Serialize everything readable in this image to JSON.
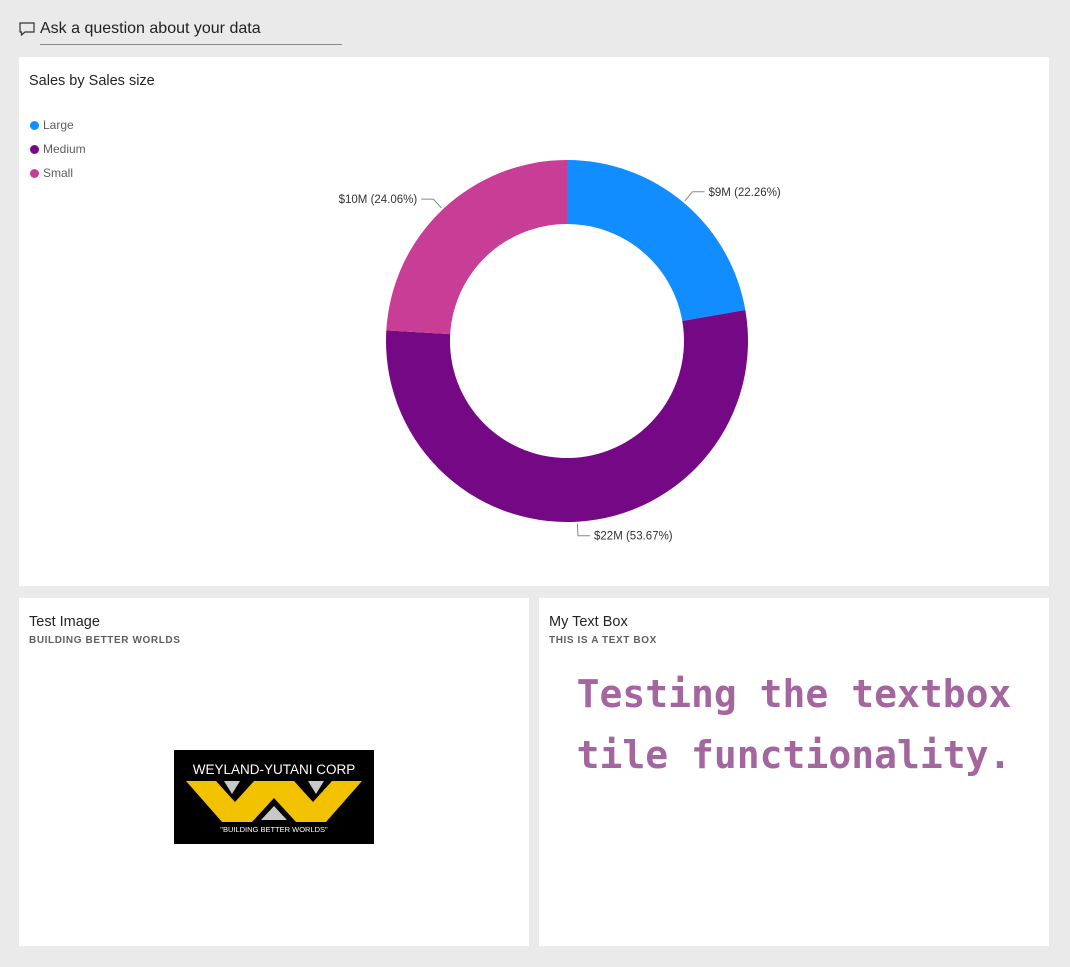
{
  "qa": {
    "placeholder": "Ask a question about your data",
    "icon": "chat-bubble-icon"
  },
  "chart_tile": {
    "title": "Sales by Sales size",
    "chart_data": {
      "type": "pie",
      "donut": true,
      "title": "Sales by Sales size",
      "legend_position": "top-left",
      "categories": [
        "Large",
        "Medium",
        "Small"
      ],
      "values_usd_millions": [
        9,
        22,
        10
      ],
      "percentages": [
        22.26,
        53.67,
        24.06
      ],
      "labels": [
        "$9M (22.26%)",
        "$22M (53.67%)",
        "$10M (24.06%)"
      ],
      "colors": [
        "#118dff",
        "#750985",
        "#c83d95"
      ]
    }
  },
  "image_tile": {
    "title": "Test Image",
    "subtitle": "BUILDING BETTER WORLDS",
    "logo": {
      "brand": "WEYLAND-YUTANI CORP",
      "tagline": "\"BUILDING BETTER WORLDS\"",
      "colors": {
        "background": "#000000",
        "wing": "#f2c200",
        "accent": "#c8c8c8"
      }
    }
  },
  "text_tile": {
    "title": "My Text Box",
    "subtitle": "THIS IS A TEXT BOX",
    "lines": [
      "Testing the textbox",
      "tile functionality."
    ],
    "text_color": "#a4669f"
  }
}
